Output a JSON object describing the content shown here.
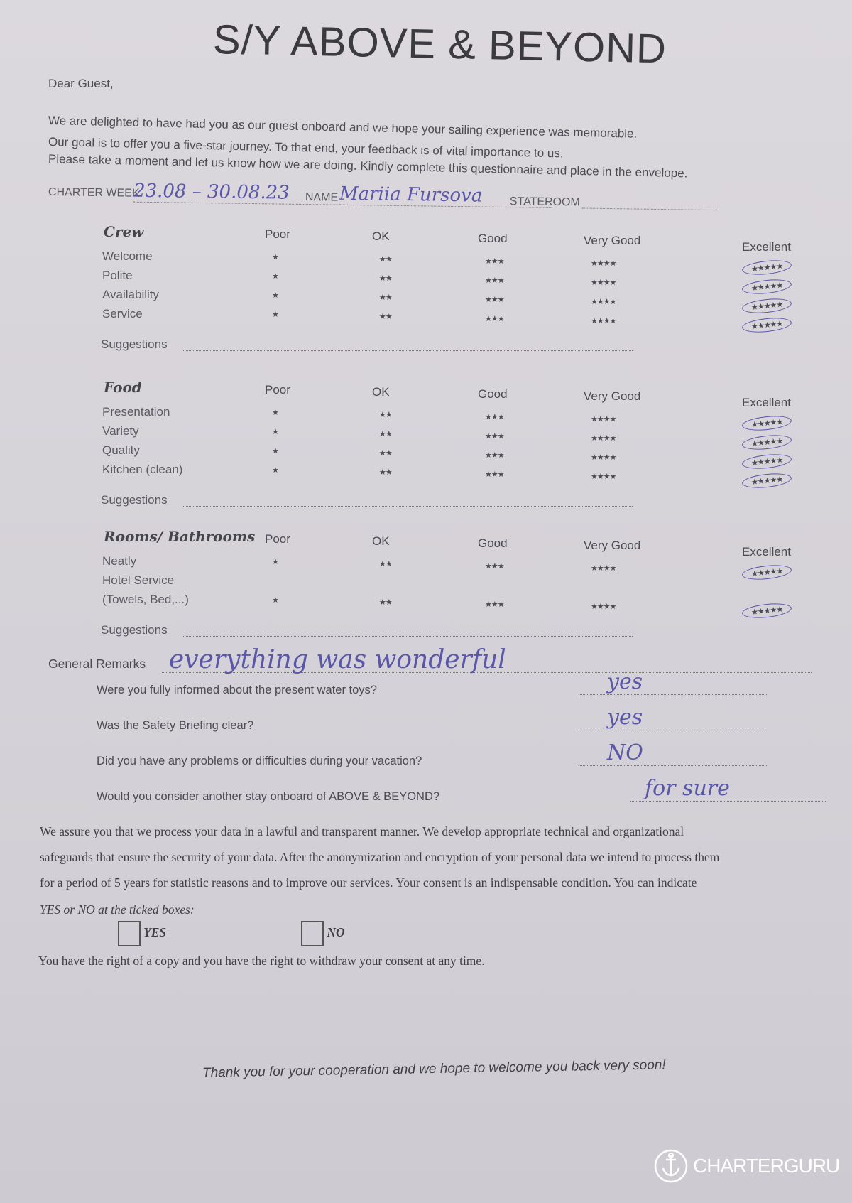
{
  "title": "S/Y ABOVE & BEYOND",
  "greeting": "Dear Guest,",
  "intro": [
    "We are delighted to have had you as our guest onboard and we hope your sailing experience was memorable.",
    "Our goal is to offer you a five-star journey. To that end, your feedback is of vital importance to us.",
    "Please take a moment and let us know how we are doing. Kindly complete this questionnaire and place in the envelope."
  ],
  "charter": {
    "week_label": "CHARTER WEEK",
    "week_value": "23.08 – 30.08.23",
    "name_label": "NAME",
    "name_value": "Mariia Fursova",
    "stateroom_label": "STATEROOM",
    "stateroom_value": ""
  },
  "rating_columns": [
    "Poor",
    "OK",
    "Good",
    "Very Good",
    "Excellent"
  ],
  "rating_stars": [
    "★",
    "★★",
    "★★★",
    "★★★★",
    "★★★★★"
  ],
  "suggestions_label": "Suggestions",
  "sections": [
    {
      "title": "Crew",
      "rows": [
        {
          "label": "Welcome",
          "selected": "Excellent"
        },
        {
          "label": "Polite",
          "selected": "Excellent"
        },
        {
          "label": "Availability",
          "selected": "Excellent"
        },
        {
          "label": "Service",
          "selected": "Excellent"
        }
      ]
    },
    {
      "title": "Food",
      "rows": [
        {
          "label": "Presentation",
          "selected": "Excellent"
        },
        {
          "label": "Variety",
          "selected": "Excellent"
        },
        {
          "label": "Quality",
          "selected": "Excellent"
        },
        {
          "label": "Kitchen (clean)",
          "selected": "Excellent"
        }
      ]
    },
    {
      "title": "Rooms/ Bathrooms",
      "rows": [
        {
          "label": "Neatly",
          "selected": "Excellent"
        },
        {
          "label": "Hotel Service",
          "label2": "(Towels, Bed,...)",
          "selected": "Excellent"
        }
      ]
    }
  ],
  "remarks": {
    "label": "General Remarks",
    "value": "everything was wonderful"
  },
  "questions": [
    {
      "q": "Were you fully informed about the present water toys?",
      "a": "yes"
    },
    {
      "q": "Was the Safety Briefing clear?",
      "a": "yes"
    },
    {
      "q": "Did you have any problems or difficulties during your vacation?",
      "a": "NO"
    },
    {
      "q": "Would you consider another stay onboard of ABOVE & BEYOND?",
      "a": "for sure"
    }
  ],
  "privacy": {
    "lines": [
      "We assure you that we process your data in a lawful and transparent manner. We develop appropriate technical and organizational",
      "safeguards that ensure the security of your data. After the anonymization and encryption of your personal data we intend to process them",
      "for a period of 5 years for statistic reasons and to improve our services. Your consent is an indispensable condition. You can indicate",
      "YES or NO at the ticked boxes:"
    ],
    "yes_label": "YES",
    "no_label": "NO",
    "yes_checked": false,
    "no_checked": false,
    "rights": "You have the right of a copy and you have the right to withdraw your consent at any time."
  },
  "closing": "Thank you for your cooperation and we hope to welcome you back very soon!",
  "watermark": {
    "text": "CHARTERGURU",
    "icon": "anchor-icon"
  },
  "colors": {
    "ink": "#5a57a8",
    "paper": "#d8d5db"
  }
}
